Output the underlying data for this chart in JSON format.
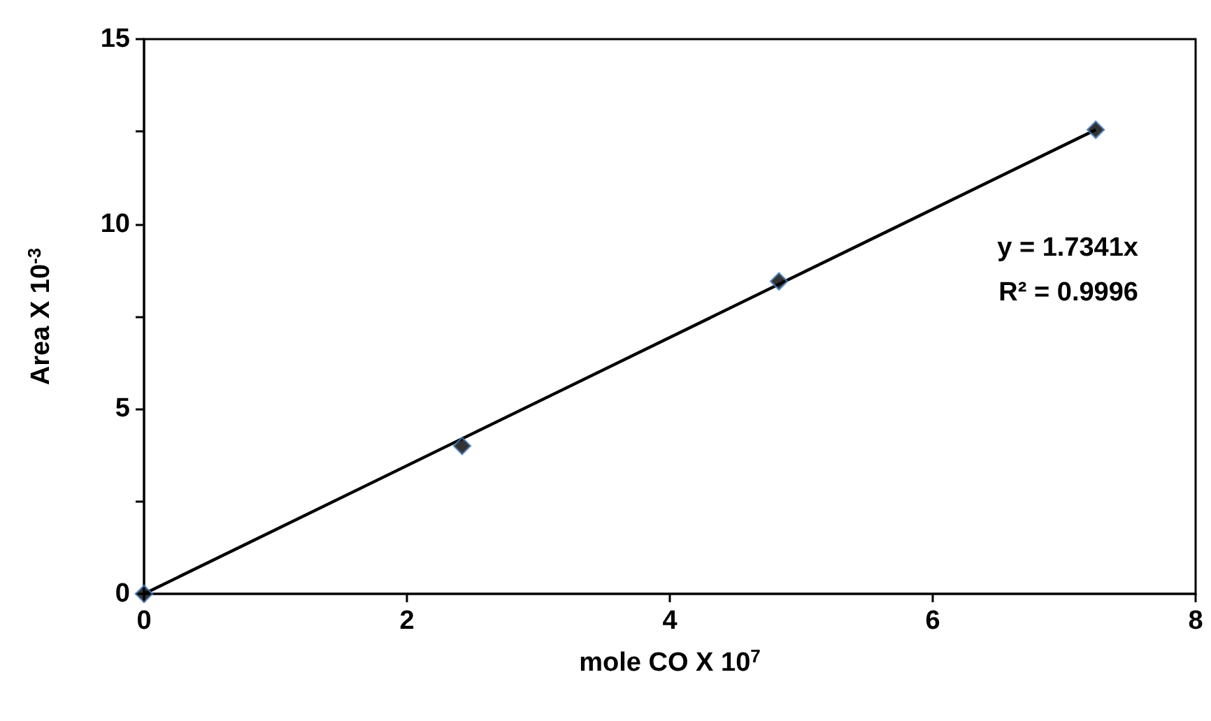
{
  "chart_data": {
    "type": "scatter",
    "xlabel": "mole CO X 10$^{7}$",
    "ylabel": "Area X 10$^{-3}$",
    "xlim": [
      0,
      8
    ],
    "xticks": [
      0,
      2,
      4,
      6,
      8
    ],
    "ylim": [
      0,
      15
    ],
    "yticks": [
      0,
      {
        "value": 2.5,
        "label": null
      },
      5,
      {
        "value": 7.5,
        "label": null
      },
      10,
      {
        "value": 12.5,
        "label": null
      },
      15
    ],
    "grid": false,
    "marker": "diamond",
    "series": [
      {
        "color": "#000000",
        "x": [
          0,
          2.42,
          4.83,
          7.24
        ],
        "values": [
          0,
          4.0,
          8.45,
          12.55
        ]
      },
      {
        "type": "line",
        "color": "#000000",
        "marker": "none",
        "line_style": "solid",
        "x": [
          0,
          7.24
        ],
        "values": [
          0,
          12.55
        ]
      }
    ],
    "annotations": [
      "y = 1.7341x",
      "R² = 0.9996"
    ]
  }
}
